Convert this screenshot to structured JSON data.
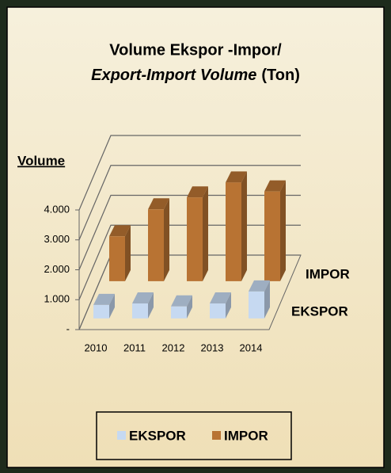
{
  "chart_data": {
    "type": "bar3d",
    "title": [
      "Volume Ekspor -Impor/",
      "Export-Import Volume",
      "(Ton)"
    ],
    "y_label": "Volume",
    "categories": [
      "2010",
      "2011",
      "2012",
      "2013",
      "2014"
    ],
    "series": [
      {
        "name": "EKSPOR",
        "color": "#c6d9f1",
        "values": [
          450,
          500,
          400,
          500,
          900
        ]
      },
      {
        "name": "IMPOR",
        "color": "#b87333",
        "values": [
          1500,
          2400,
          2800,
          3300,
          3000
        ]
      }
    ],
    "ylim": [
      0,
      4000
    ],
    "yticks": [
      {
        "value": 0,
        "label": "-"
      },
      {
        "value": 1000,
        "label": "1.000"
      },
      {
        "value": 2000,
        "label": "2.000"
      },
      {
        "value": 3000,
        "label": "3.000"
      },
      {
        "value": 4000,
        "label": "4.000"
      }
    ],
    "grid": true,
    "legend": "bottom"
  }
}
